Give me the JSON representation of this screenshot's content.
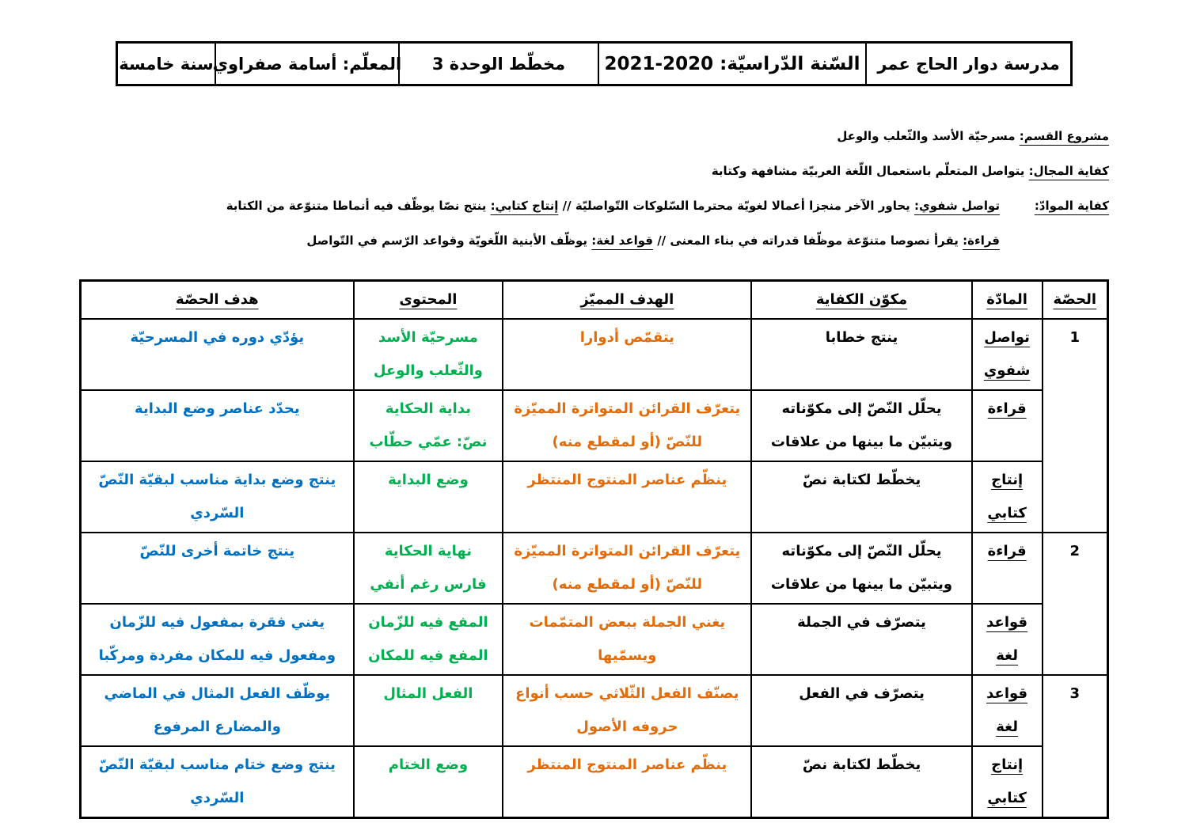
{
  "header": {
    "school": "مدرسة دوار الحاج عمر",
    "year": "السّنة الدّراسيّة: 2020-2021",
    "unit": "مخطّط الوحدة 3",
    "teacher": "المعلّم: أسامة صفراوي",
    "grade": "سنة خامسة"
  },
  "info": {
    "project_label": "مشروع القسم:",
    "project_value": " مسرحيّة الأسد والثّعلب والوعل",
    "domain_label": "كفاية المجال:",
    "domain_value": " يتواصل المتعلّم باستعمال اللّغة العربيّة مشافهة وكتابة",
    "subjects_label": "كفاية الموادّ:",
    "oral_label": "تواصل شفوي:",
    "oral_value": " يحاور الآخر منجزا أعمالا لغويّة محترما السّلوكات التّواصليّة  //  ",
    "writing_label": "إنتاج كتابي:",
    "writing_value": " ينتج نصّا يوظّف فيه أنماطا متنوّعة من الكتابة",
    "reading_label": "قراءة:",
    "reading_value": " يقرأ نصوصا متنوّعة موظّفا قدراته في بناء المعنى  //  ",
    "grammar_label": "قواعد لغة:",
    "grammar_value": " يوظّف الأبنية اللّغويّة وقواعد الرّسم في التّواصل"
  },
  "colors": {
    "goal": "#e36c0a",
    "content": "#00b050",
    "lesson_goal": "#0070c0"
  },
  "table": {
    "headers": [
      "الحصّة",
      "المادّة",
      "مكوّن الكفاية",
      "الهدف المميّز",
      "المحتوى",
      "هدف الحصّة"
    ],
    "rows": [
      {
        "session": "1",
        "span": 3,
        "subject": "تواصل\nشفوي",
        "component": "ينتج خطابا",
        "goal": "يتقمّص أدوارا",
        "content": "مسرحيّة الأسد\nوالثّعلب والوعل",
        "lesson_goal": "يؤدّي دوره في المسرحيّة"
      },
      {
        "subject": "قراءة",
        "component": "يحلّل النّصّ إلى مكوّناته\nويتبيّن ما بينها من علاقات",
        "goal": "يتعرّف القرائن المتواترة المميّزة\nللنّصّ (أو لمقطع منه)",
        "content": "بداية الحكاية\nنصّ: عمّي حطّاب",
        "lesson_goal": "يحدّد عناصر وضع البداية"
      },
      {
        "subject": "إنتاج\nكتابي",
        "component": "يخطّط لكتابة نصّ",
        "goal": "ينظّم عناصر المنتوج المنتظر",
        "content": "وضع البداية",
        "lesson_goal": "ينتج وضع بداية مناسب لبقيّة النّصّ\nالسّردي"
      },
      {
        "session": "2",
        "span": 2,
        "subject": "قراءة",
        "component": "يحلّل النّصّ إلى مكوّناته\nويتبيّن ما بينها من علاقات",
        "goal": "يتعرّف القرائن المتواترة المميّزة\nللنّصّ (أو لمقطع منه)",
        "content": "نهاية الحكاية\nفارس رغم أنفي",
        "lesson_goal": "ينتج خاتمة أخرى للنّصّ"
      },
      {
        "subject": "قواعد\nلغة",
        "component": "يتصرّف في الجملة",
        "goal": "يغني الجملة ببعض المتمّمات\nويسمّيها",
        "content": "المفع فيه للزّمان\nالمفع فيه للمكان",
        "lesson_goal": "يغني فقرة بمفعول فيه للزّمان\nومفعول فيه للمكان مفردة ومركّبا"
      },
      {
        "session": "3",
        "span": 2,
        "subject": "قواعد\nلغة",
        "component": "يتصرّف في الفعل",
        "goal": "يصنّف الفعل الثّلاثي حسب أنواع\nحروفه الأصول",
        "content": "الفعل المثال",
        "lesson_goal": "يوظّف الفعل المثال في الماضي\nوالمضارع المرفوع"
      },
      {
        "subject": "إنتاج\nكتابي",
        "component": "يخطّط لكتابة نصّ",
        "goal": "ينظّم عناصر المنتوج المنتظر",
        "content": "وضع الختام",
        "lesson_goal": "ينتج وضع ختام مناسب لبقيّة النّصّ\nالسّردي"
      }
    ]
  }
}
